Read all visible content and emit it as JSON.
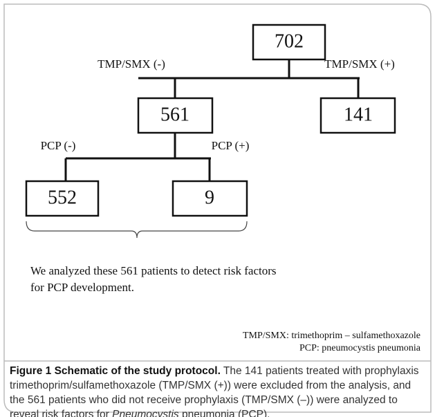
{
  "nodes": [
    {
      "label": "702"
    },
    {
      "label": "561"
    },
    {
      "label": "141"
    },
    {
      "label": "552"
    },
    {
      "label": "9"
    }
  ],
  "edges": [
    {
      "label": "TMP/SMX (-)"
    },
    {
      "label": "TMP/SMX (+)"
    },
    {
      "label": "PCP (-)"
    },
    {
      "label": "PCP (+)"
    }
  ],
  "note": [
    "We analyzed these 561 patients to detect risk factors",
    "for PCP development."
  ],
  "legend": [
    "TMP/SMX: trimethoprim – sulfamethoxazole",
    "PCP: pneumocystis pneumonia"
  ],
  "caption": {
    "title": "Figure 1 Schematic of the study protocol.",
    "text_1": "The 141 patients treated with prophylaxis trimethoprim/sulfamethoxazole (TMP/SMX (+)) were excluded from the analysis, and the 561 patients who did not receive prophylaxis (TMP/SMX (–)) were analyzed to reveal risk factors for",
    "italic": "Pneumocystis",
    "text_2": "pneumonia (PCP)."
  }
}
